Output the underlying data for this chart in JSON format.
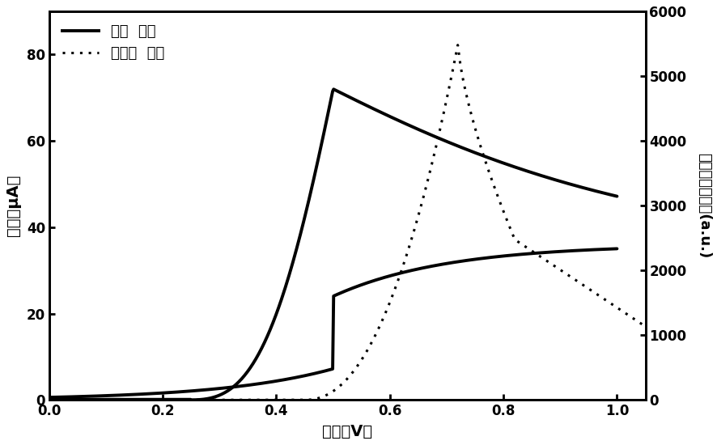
{
  "title": "",
  "xlabel": "电压（V）",
  "ylabel_left": "电流（μA）",
  "ylabel_right": "电化学发光强度(a.u.)",
  "xlim": [
    0.0,
    1.05
  ],
  "ylim_left": [
    0,
    90
  ],
  "ylim_right": [
    0,
    6000
  ],
  "xticks": [
    0.0,
    0.2,
    0.4,
    0.6,
    0.8,
    1.0
  ],
  "yticks_left": [
    0,
    20,
    40,
    60,
    80
  ],
  "yticks_right": [
    0,
    1000,
    2000,
    3000,
    4000,
    5000,
    6000
  ],
  "legend_solid": "循环  伏安",
  "legend_dotted": "电化学  发光",
  "background_color": "#ffffff",
  "line_color": "#000000",
  "ecl_color": "#000000",
  "cv_linewidth": 2.8,
  "ecl_linewidth": 2.2,
  "spine_linewidth": 2.0,
  "tick_fontsize": 12,
  "label_fontsize": 14,
  "legend_fontsize": 13
}
